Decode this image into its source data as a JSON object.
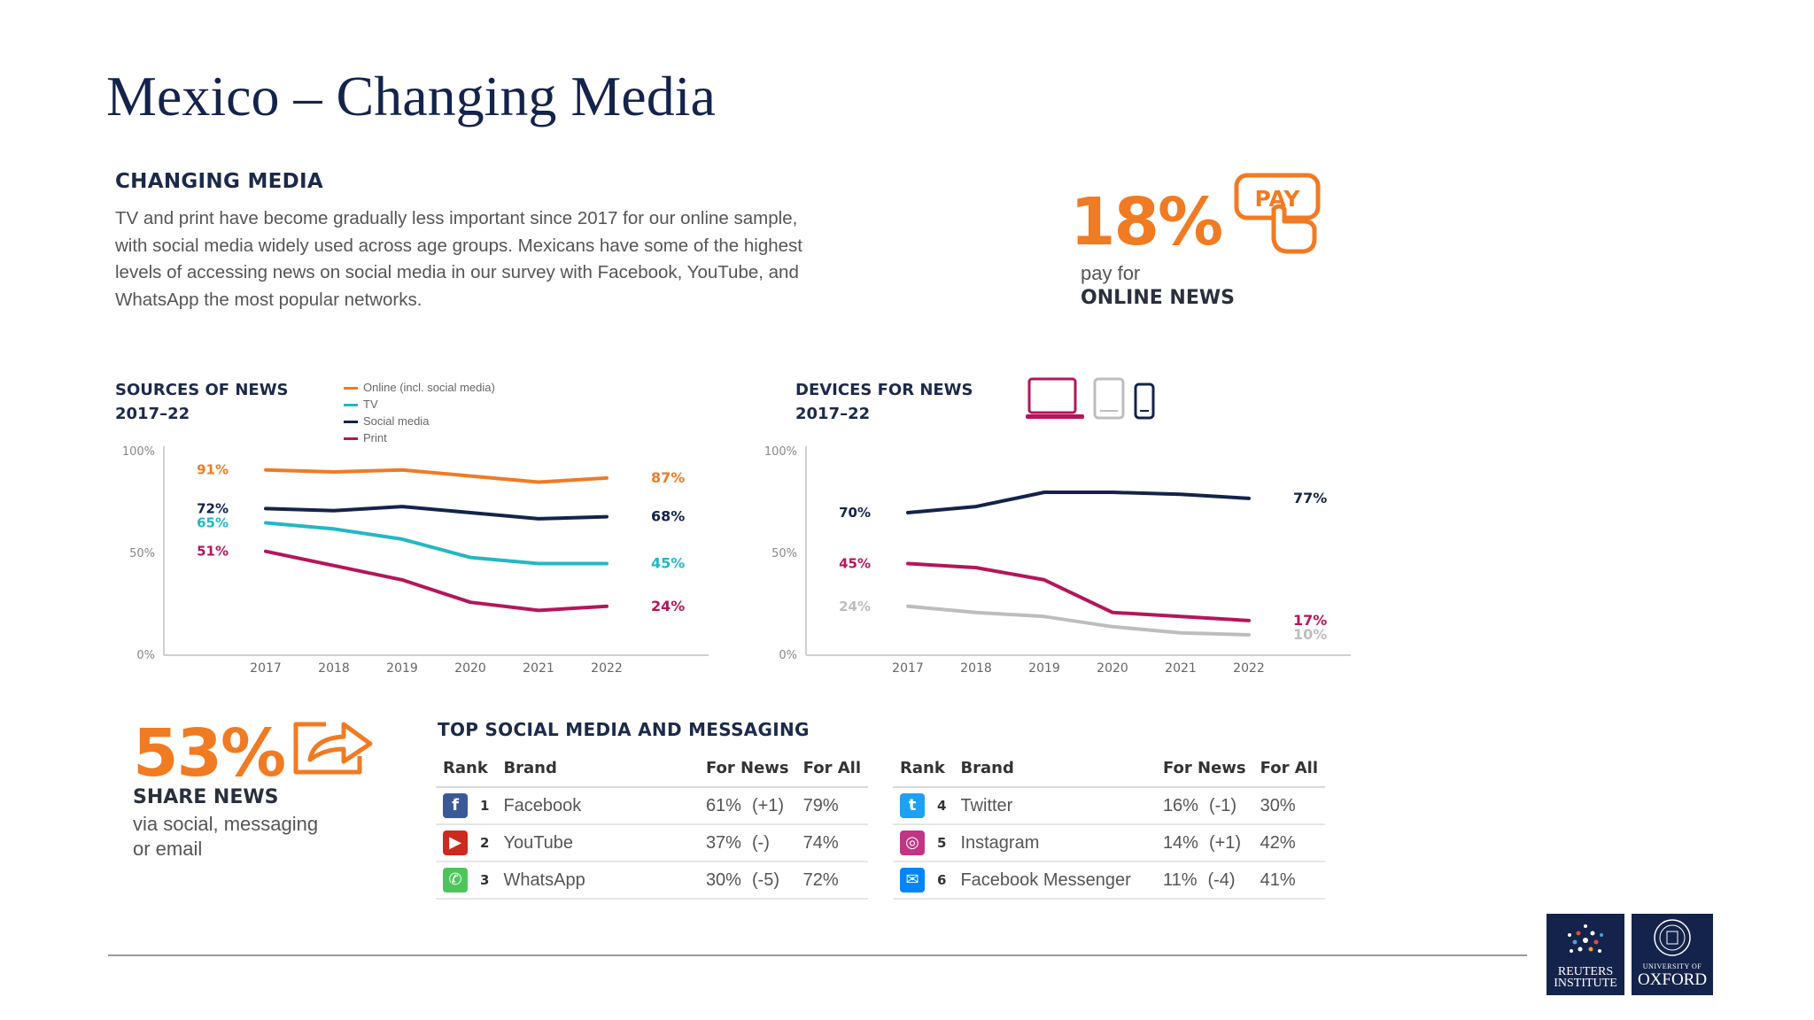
{
  "page": {
    "title": "Mexico – Changing Media"
  },
  "intro": {
    "heading": "CHANGING MEDIA",
    "text": "TV and print have become gradually less important since 2017 for our online sample, with social media widely used across age groups. Mexicans have some of the highest levels of accessing news on social media in our survey with Facebook, YouTube, and WhatsApp the most popular networks."
  },
  "pay": {
    "value": "18%",
    "line1": "pay for",
    "line2": "ONLINE NEWS",
    "badge": "PAY"
  },
  "share": {
    "value": "53%",
    "line1": "SHARE NEWS",
    "line2": "via social, messaging",
    "line3": "or email"
  },
  "chart_data": [
    {
      "type": "line",
      "title": "SOURCES OF NEWS",
      "subtitle": "2017–22",
      "x": [
        "2017",
        "2018",
        "2019",
        "2020",
        "2021",
        "2022"
      ],
      "ylim": [
        0,
        100
      ],
      "y_ticks": [
        "100%",
        "50%",
        "0%"
      ],
      "legend_placement": "top",
      "series": [
        {
          "name": "Online (incl. social media)",
          "color": "#f07b23",
          "values": [
            91,
            90,
            91,
            88,
            85,
            87
          ],
          "start_label": "91%",
          "end_label": "87%"
        },
        {
          "name": "TV",
          "color": "#22b8c4",
          "values": [
            65,
            62,
            57,
            48,
            45,
            45
          ],
          "start_label": "65%",
          "end_label": "45%"
        },
        {
          "name": "Social media",
          "color": "#14234b",
          "values": [
            72,
            71,
            73,
            70,
            67,
            68
          ],
          "start_label": "72%",
          "end_label": "68%"
        },
        {
          "name": "Print",
          "color": "#b5165a",
          "values": [
            51,
            44,
            37,
            26,
            22,
            24
          ],
          "start_label": "51%",
          "end_label": "24%"
        }
      ]
    },
    {
      "type": "line",
      "title": "DEVICES FOR NEWS",
      "subtitle": "2017–22",
      "x": [
        "2017",
        "2018",
        "2019",
        "2020",
        "2021",
        "2022"
      ],
      "ylim": [
        0,
        100
      ],
      "y_ticks": [
        "100%",
        "50%",
        "0%"
      ],
      "series": [
        {
          "name": "Smartphone",
          "color": "#14234b",
          "values": [
            70,
            73,
            80,
            80,
            79,
            77
          ],
          "start_label": "70%",
          "end_label": "77%"
        },
        {
          "name": "Computer",
          "color": "#b5165a",
          "values": [
            45,
            43,
            37,
            21,
            19,
            17
          ],
          "start_label": "45%",
          "end_label": "17%"
        },
        {
          "name": "Tablet",
          "color": "#bdbdbd",
          "values": [
            24,
            21,
            19,
            14,
            11,
            10
          ],
          "start_label": "24%",
          "end_label": "10%"
        }
      ]
    }
  ],
  "social": {
    "heading": "TOP SOCIAL MEDIA AND MESSAGING",
    "columns": [
      "Rank",
      "Brand",
      "For News",
      "For All"
    ],
    "left": [
      {
        "rank": "1",
        "brand": "Facebook",
        "news": "61%",
        "change": "(+1)",
        "all": "79%",
        "icon": "facebook-icon",
        "color": "#3b5998",
        "glyph": "f"
      },
      {
        "rank": "2",
        "brand": "YouTube",
        "news": "37%",
        "change": "(-)",
        "all": "74%",
        "icon": "youtube-icon",
        "color": "#cc2a1e",
        "glyph": "▶"
      },
      {
        "rank": "3",
        "brand": "WhatsApp",
        "news": "30%",
        "change": "(-5)",
        "all": "72%",
        "icon": "whatsapp-icon",
        "color": "#4fc45c",
        "glyph": "✆"
      }
    ],
    "right": [
      {
        "rank": "4",
        "brand": "Twitter",
        "news": "16%",
        "change": "(-1)",
        "all": "30%",
        "icon": "twitter-icon",
        "color": "#1da1f2",
        "glyph": "t"
      },
      {
        "rank": "5",
        "brand": "Instagram",
        "news": "14%",
        "change": "(+1)",
        "all": "42%",
        "icon": "instagram-icon",
        "color": "#c13584",
        "glyph": "◎"
      },
      {
        "rank": "6",
        "brand": "Facebook Messenger",
        "news": "11%",
        "change": "(-4)",
        "all": "41%",
        "icon": "messenger-icon",
        "color": "#0084ff",
        "glyph": "✉"
      }
    ]
  },
  "logos": {
    "reuters": {
      "line1": "REUTERS",
      "line2": "INSTITUTE"
    },
    "oxford": {
      "line1": "UNIVERSITY OF",
      "line2": "OXFORD"
    }
  }
}
